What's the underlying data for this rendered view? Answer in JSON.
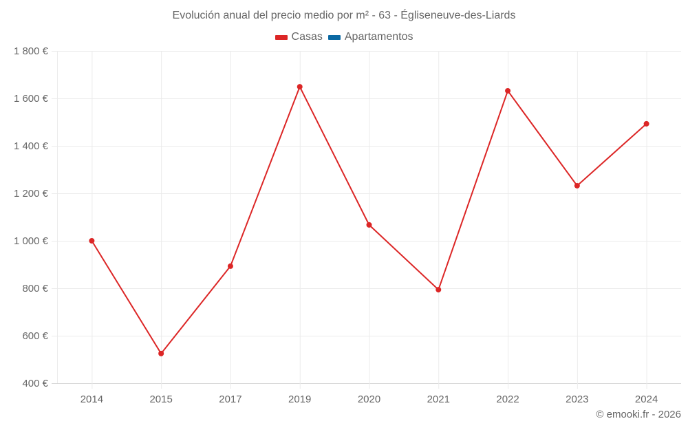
{
  "header": {
    "title": "Evolución anual del precio medio por m² - 63 - Égliseneuve-des-Liards"
  },
  "legend": {
    "items": [
      {
        "label": "Casas",
        "color": "#dc2626"
      },
      {
        "label": "Apartamentos",
        "color": "#0b69a3"
      }
    ]
  },
  "footer": {
    "credit": "© emooki.fr - 2026"
  },
  "colors": {
    "series_line": "#dc2626",
    "grid": "#ebebeb",
    "axis": "#d6d6d6",
    "text": "#666666"
  },
  "chart_data": {
    "type": "line",
    "title": "Evolución anual del precio medio por m² - 63 - Égliseneuve-des-Liards",
    "xlabel": "",
    "ylabel": "",
    "categories": [
      "2014",
      "2015",
      "2017",
      "2019",
      "2020",
      "2021",
      "2022",
      "2023",
      "2024"
    ],
    "series": [
      {
        "name": "Casas",
        "color": "#dc2626",
        "values": [
          1000,
          525,
          893,
          1649,
          1067,
          794,
          1632,
          1232,
          1493
        ]
      },
      {
        "name": "Apartamentos",
        "color": "#0b69a3",
        "values": []
      }
    ],
    "yticks": [
      "400 €",
      "600 €",
      "800 €",
      "1 000 €",
      "1 200 €",
      "1 400 €",
      "1 600 €",
      "1 800 €"
    ],
    "ytick_values": [
      400,
      600,
      800,
      1000,
      1200,
      1400,
      1600,
      1800
    ],
    "ylim": [
      400,
      1800
    ],
    "grid": true,
    "legend_position": "top"
  }
}
